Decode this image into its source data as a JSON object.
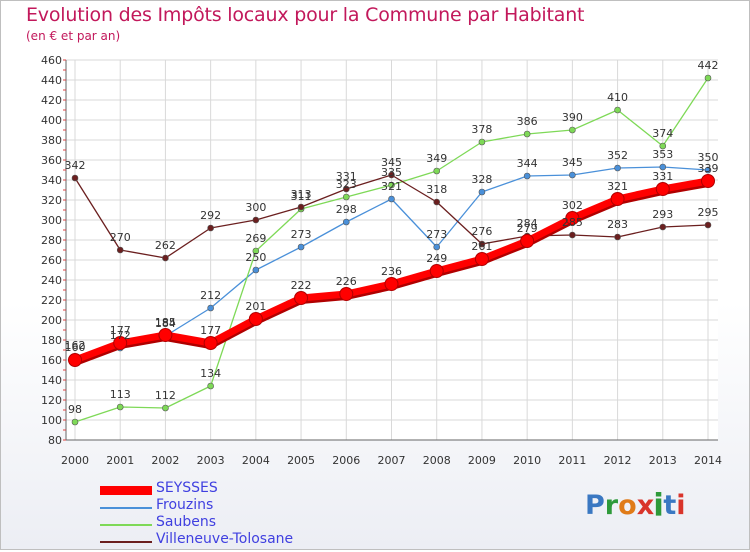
{
  "title": "Evolution des Impôts locaux pour la Commune par Habitant",
  "subtitle": "(en € et par an)",
  "logo": {
    "text": "Proxiti",
    "letter_colors": [
      "#3a78c2",
      "#2e9a3a",
      "#e07b18",
      "#d9342b",
      "#2e9a3a",
      "#3a78c2",
      "#d9342b"
    ]
  },
  "chart_data": {
    "type": "line",
    "title": "Evolution des Impôts locaux pour la Commune par Habitant",
    "subtitle": "(en € et par an)",
    "xlabel": "",
    "ylabel": "",
    "ylim": [
      80,
      460
    ],
    "yticks": [
      80,
      100,
      120,
      140,
      160,
      180,
      200,
      220,
      240,
      260,
      280,
      300,
      320,
      340,
      360,
      380,
      400,
      420,
      440,
      460
    ],
    "grid": true,
    "legend_position": "bottom-left",
    "x": [
      "2000",
      "2001",
      "2002",
      "2003",
      "2004",
      "2005",
      "2006",
      "2007",
      "2008",
      "2009",
      "2010",
      "2011",
      "2012",
      "2013",
      "2014"
    ],
    "series": [
      {
        "name": "SEYSSES",
        "color": "#ff0000",
        "values": [
          160,
          177,
          185,
          177,
          201,
          222,
          226,
          236,
          249,
          261,
          279,
          302,
          321,
          331,
          339
        ]
      },
      {
        "name": "Frouzins",
        "color": "#4a90d9",
        "values": [
          162,
          172,
          184,
          212,
          250,
          273,
          298,
          321,
          273,
          328,
          344,
          345,
          352,
          353,
          350
        ]
      },
      {
        "name": "Saubens",
        "color": "#7ed957",
        "values": [
          98,
          113,
          112,
          134,
          269,
          311,
          323,
          335,
          349,
          378,
          386,
          390,
          410,
          374,
          442
        ]
      },
      {
        "name": "Villeneuve-Tolosane",
        "color": "#6b1f1f",
        "values": [
          342,
          270,
          262,
          292,
          300,
          313,
          331,
          345,
          318,
          276,
          284,
          285,
          283,
          293,
          295
        ]
      }
    ],
    "data_labels": {
      "SEYSSES": [
        "160",
        "177",
        "185",
        "177",
        "201",
        "222",
        "226",
        "236",
        "249",
        "261",
        "279",
        "302",
        "321",
        "331",
        "339"
      ],
      "Frouzins": [
        "162",
        "172",
        "184",
        "212",
        "250",
        "273",
        "298",
        "321",
        "273",
        "328",
        "344",
        "345",
        "352",
        "353",
        "350"
      ],
      "Saubens": [
        "98",
        "113",
        "112",
        "134",
        "269",
        "311",
        "323",
        "335",
        "349",
        "378",
        "386",
        "390",
        "410",
        "374",
        "442"
      ],
      "Villeneuve-Tolosane": [
        "342",
        "270",
        "262",
        "292",
        "300",
        "313",
        "331",
        "345",
        "318",
        "276",
        "284",
        "285",
        "283",
        "293",
        "295"
      ]
    }
  }
}
